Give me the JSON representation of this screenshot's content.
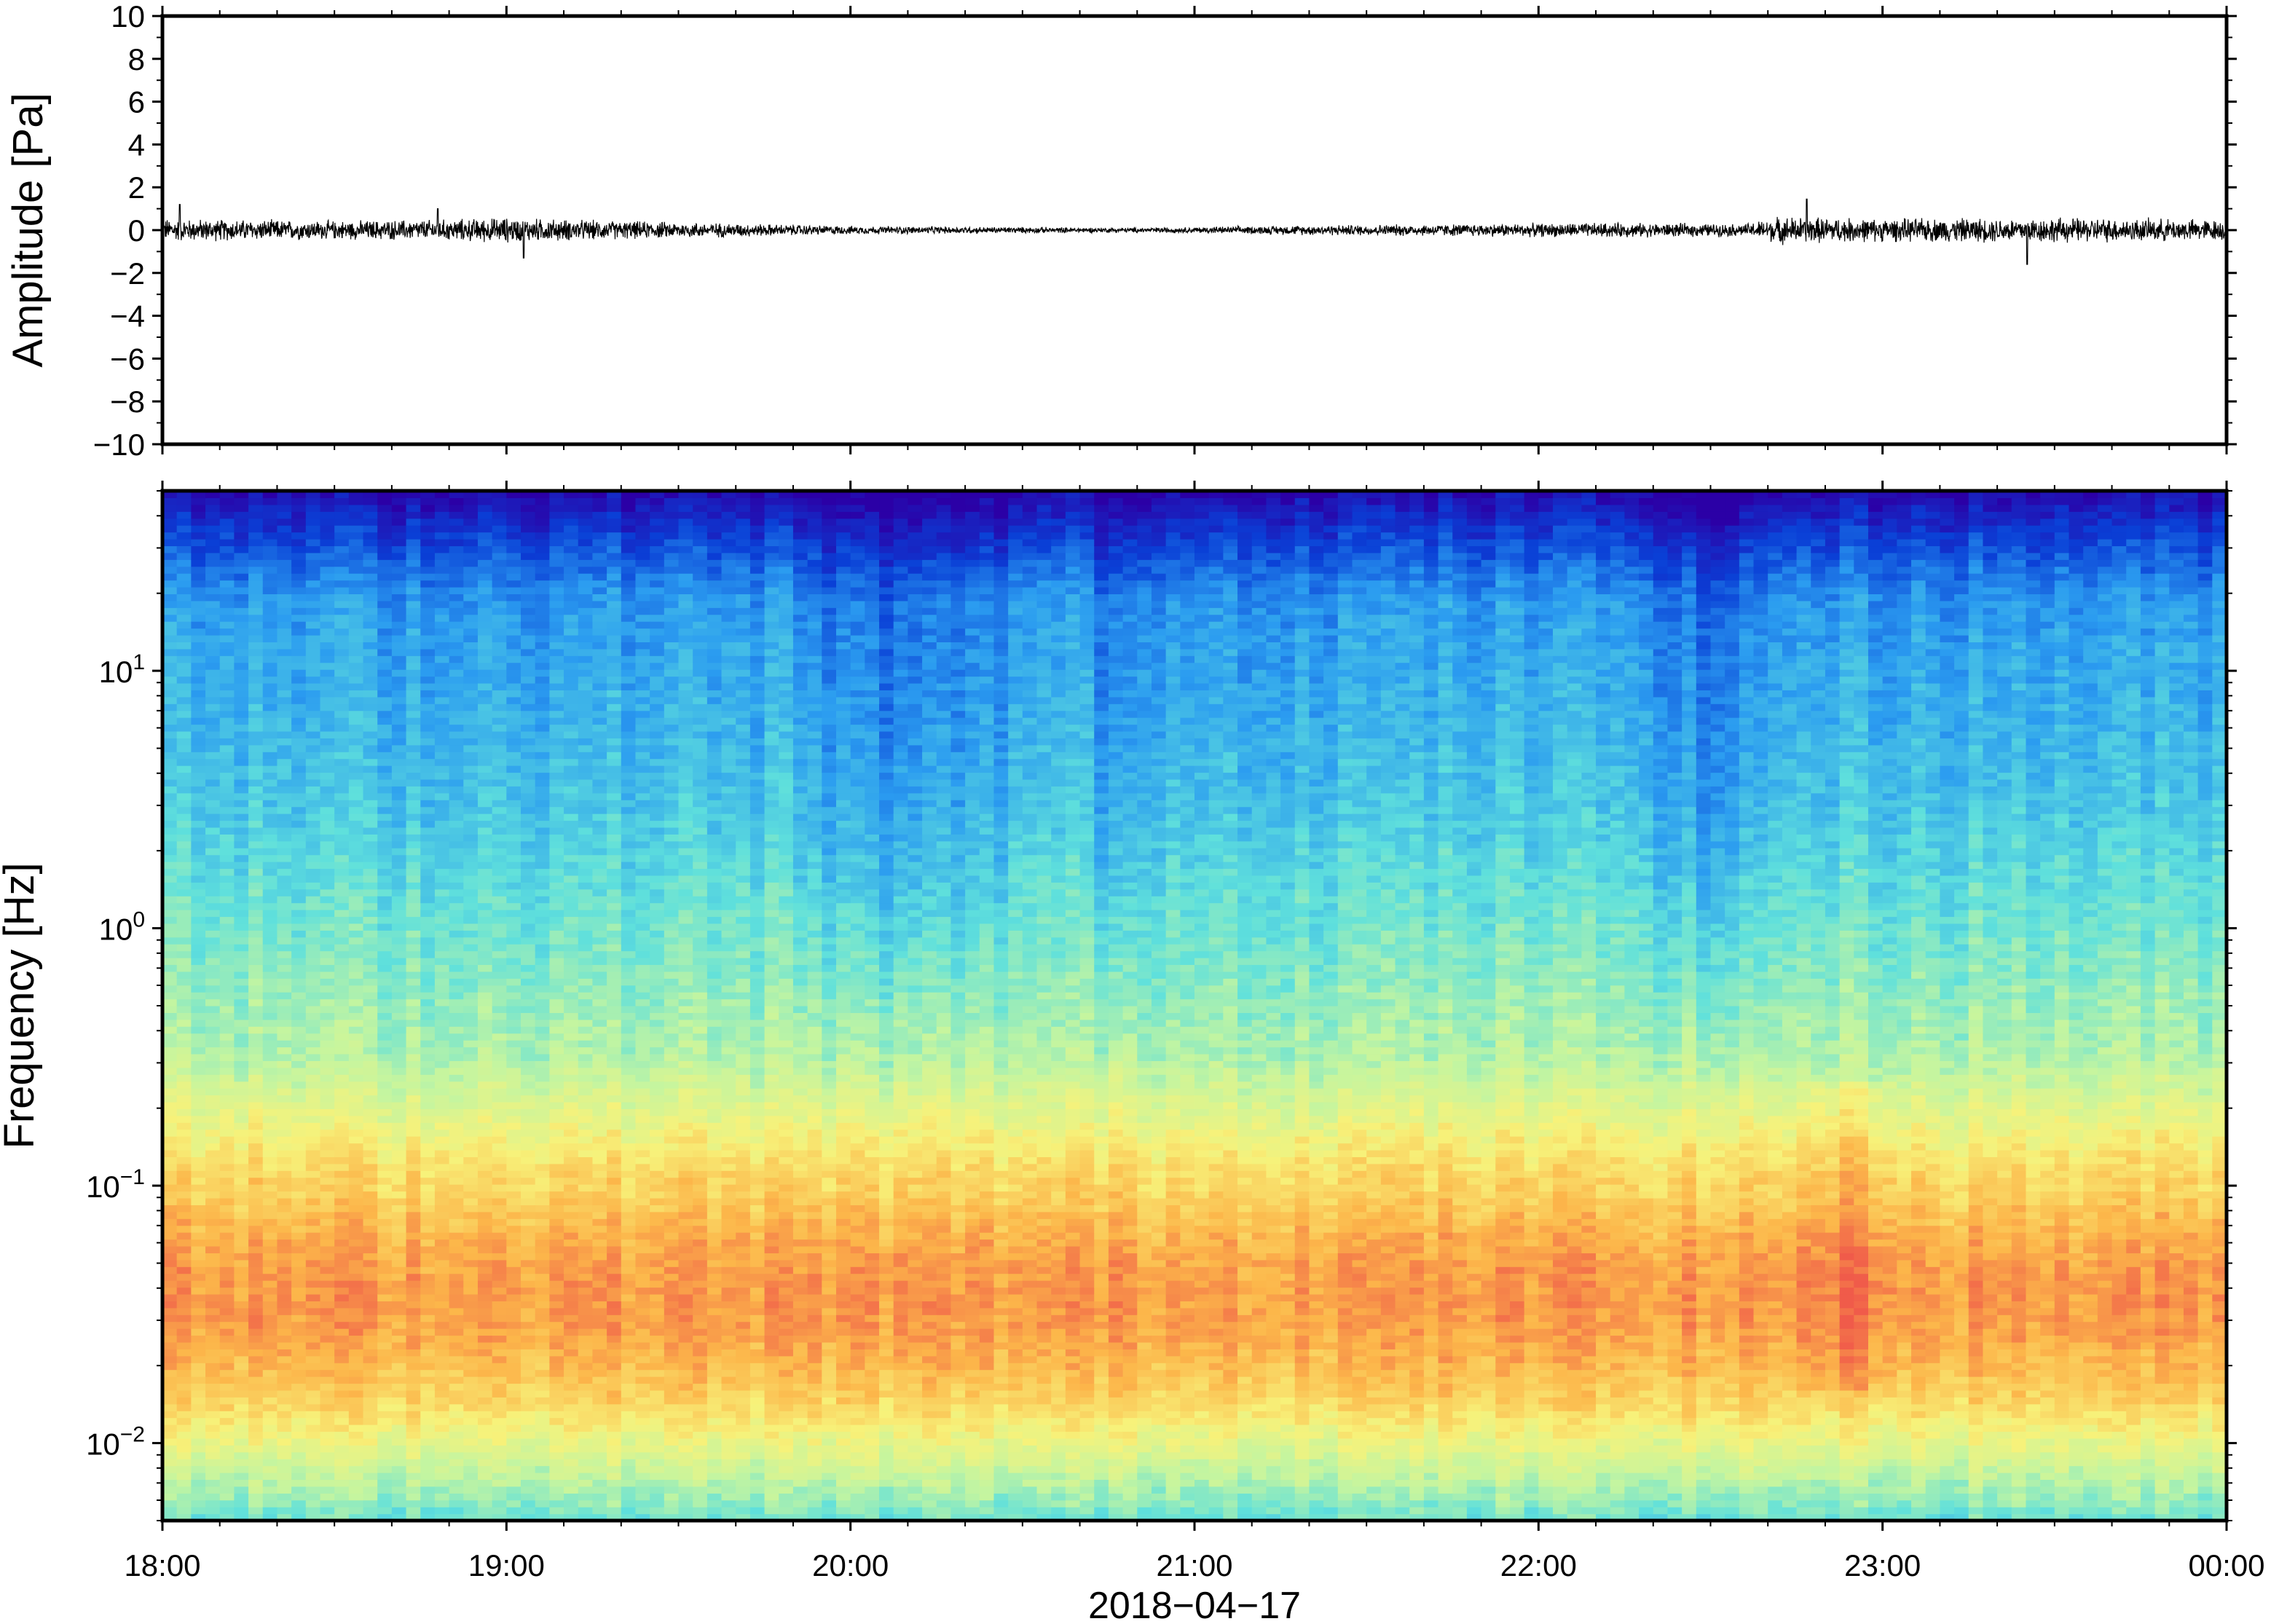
{
  "chart_data": [
    {
      "type": "line",
      "panel": "waveform",
      "ylabel": "Amplitude [Pa]",
      "ylim": [
        -10,
        10
      ],
      "yticks": [
        -10,
        -8,
        -6,
        -4,
        -2,
        0,
        2,
        4,
        6,
        8,
        10
      ],
      "ytick_labels": [
        "−10",
        "−8",
        "−6",
        "−4",
        "−2",
        "0",
        "2",
        "4",
        "6",
        "8",
        "10"
      ],
      "x_range_hours": [
        18,
        24
      ],
      "color": "#000000",
      "series": [
        {
          "noise_envelope_pa": [
            {
              "t": 18.0,
              "a": 0.55
            },
            {
              "t": 18.5,
              "a": 0.45
            },
            {
              "t": 18.8,
              "a": 0.5
            },
            {
              "t": 19.0,
              "a": 0.6
            },
            {
              "t": 19.3,
              "a": 0.45
            },
            {
              "t": 19.6,
              "a": 0.35
            },
            {
              "t": 20.0,
              "a": 0.2
            },
            {
              "t": 20.5,
              "a": 0.15
            },
            {
              "t": 20.8,
              "a": 0.12
            },
            {
              "t": 21.0,
              "a": 0.15
            },
            {
              "t": 21.4,
              "a": 0.25
            },
            {
              "t": 21.8,
              "a": 0.3
            },
            {
              "t": 22.2,
              "a": 0.35
            },
            {
              "t": 22.6,
              "a": 0.3
            },
            {
              "t": 22.7,
              "a": 0.65
            },
            {
              "t": 23.0,
              "a": 0.55
            },
            {
              "t": 23.5,
              "a": 0.6
            },
            {
              "t": 24.0,
              "a": 0.5
            }
          ],
          "peak_events": [
            {
              "t": 18.05,
              "v": 1.2
            },
            {
              "t": 18.8,
              "v": 1.0
            },
            {
              "t": 19.05,
              "v": -1.3
            },
            {
              "t": 22.78,
              "v": 1.45
            },
            {
              "t": 23.42,
              "v": -1.6
            }
          ]
        }
      ]
    },
    {
      "type": "heatmap",
      "panel": "spectrogram",
      "ylabel": "Frequency [Hz]",
      "yscale": "log",
      "ylim_hz": [
        0.005,
        50
      ],
      "ytick_labels": [
        {
          "value": 0.01,
          "base": "10",
          "exp": "−2"
        },
        {
          "value": 0.1,
          "base": "10",
          "exp": "−1"
        },
        {
          "value": 1,
          "base": "10",
          "exp": "0"
        },
        {
          "value": 10,
          "base": "10",
          "exp": "1"
        }
      ],
      "colormap": [
        "#2b00a6",
        "#0a3fd6",
        "#2b9cf0",
        "#5fe0dc",
        "#c4f5a0",
        "#f7f27a",
        "#fcb64a",
        "#f05a4a"
      ],
      "quiet_bands_hours": [
        [
          19.85,
          20.45
        ],
        [
          20.7,
          20.85
        ],
        [
          22.35,
          22.65
        ]
      ],
      "loud_bands_hours": [
        [
          22.75,
          23.05
        ]
      ]
    }
  ],
  "xaxis": {
    "label": "2018−04−17",
    "tick_labels": [
      "18:00",
      "19:00",
      "20:00",
      "21:00",
      "22:00",
      "23:00",
      "00:00"
    ],
    "tick_hours": [
      18,
      19,
      20,
      21,
      22,
      23,
      24
    ]
  }
}
